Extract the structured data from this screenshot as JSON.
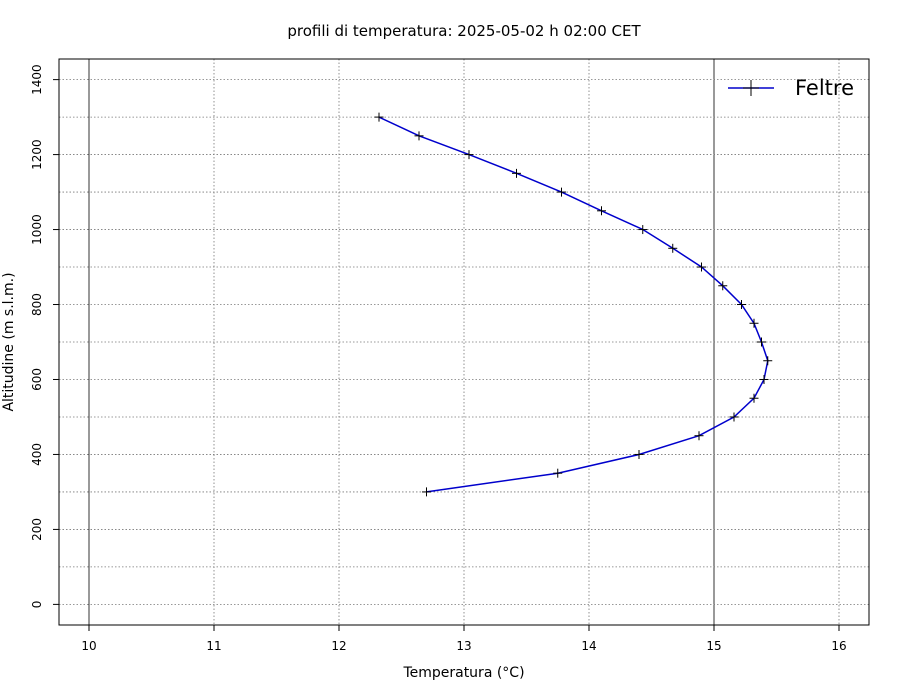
{
  "chart_data": {
    "type": "line",
    "title": "profili di temperatura: 2025-05-02   h 02:00 CET",
    "xlabel": "Temperatura (°C)",
    "ylabel": "Altitudine (m s.l.m.)",
    "xlim": [
      9.76,
      16.24
    ],
    "ylim": [
      -55,
      1455
    ],
    "x_ticks": [
      "10",
      "11",
      "12",
      "13",
      "14",
      "15",
      "16"
    ],
    "y_ticks": [
      "0",
      "200",
      "400",
      "600",
      "800",
      "1000",
      "1200",
      "1400"
    ],
    "grid": true,
    "legend_position": "top-right",
    "series": [
      {
        "name": "Feltre",
        "color": "#0000cc",
        "marker": "plus",
        "x": [
          12.7,
          13.75,
          14.4,
          14.88,
          15.16,
          15.32,
          15.4,
          15.43,
          15.38,
          15.32,
          15.22,
          15.07,
          14.9,
          14.67,
          14.43,
          14.1,
          13.78,
          13.42,
          13.04,
          12.64,
          12.32
        ],
        "y": [
          300,
          350,
          400,
          450,
          500,
          550,
          600,
          650,
          700,
          750,
          800,
          850,
          900,
          950,
          1000,
          1050,
          1100,
          1150,
          1200,
          1250,
          1300
        ]
      }
    ]
  }
}
